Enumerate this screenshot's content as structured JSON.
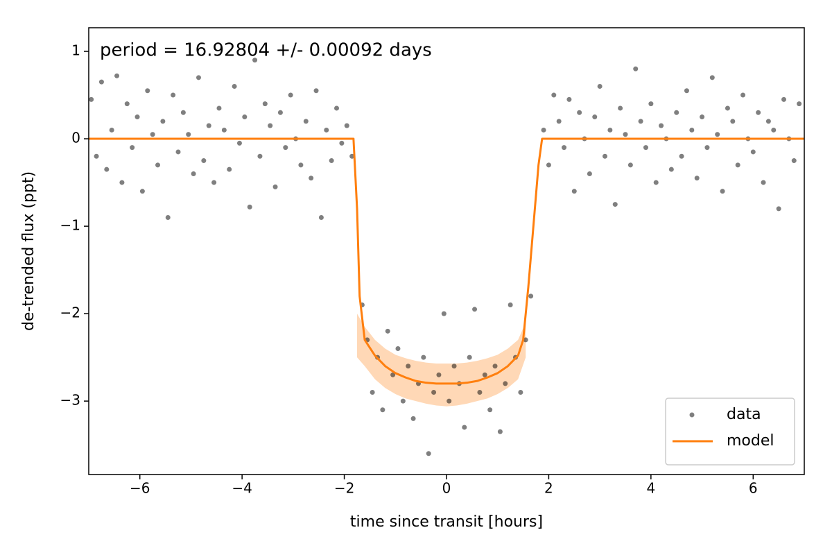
{
  "chart_data": {
    "type": "scatter",
    "title": "period = 16.92804 +/- 0.00092 days",
    "xlabel": "time since transit [hours]",
    "ylabel": "de-trended flux (ppt)",
    "xlim": [
      -7,
      7
    ],
    "ylim": [
      -3.84,
      1.27
    ],
    "xticks": [
      {
        "value": -6,
        "label": "−6"
      },
      {
        "value": -4,
        "label": "−4"
      },
      {
        "value": -2,
        "label": "−2"
      },
      0,
      2,
      4,
      6
    ],
    "yticks": [
      {
        "value": -3,
        "label": "−3"
      },
      {
        "value": -2,
        "label": "−2"
      },
      {
        "value": -1,
        "label": "−1"
      },
      0,
      1
    ],
    "legend": "lower right",
    "series": [
      {
        "name": "data",
        "type": "scatter",
        "color": "#000000",
        "x": [
          -6.95,
          -6.85,
          -6.75,
          -6.65,
          -6.55,
          -6.45,
          -6.35,
          -6.25,
          -6.15,
          -6.05,
          -5.95,
          -5.85,
          -5.75,
          -5.65,
          -5.55,
          -5.45,
          -5.35,
          -5.25,
          -5.15,
          -5.05,
          -4.95,
          -4.85,
          -4.75,
          -4.65,
          -4.55,
          -4.45,
          -4.35,
          -4.25,
          -4.15,
          -4.05,
          -3.95,
          -3.85,
          -3.75,
          -3.65,
          -3.55,
          -3.45,
          -3.35,
          -3.25,
          -3.15,
          -3.05,
          -2.95,
          -2.85,
          -2.75,
          -2.65,
          -2.55,
          -2.45,
          -2.35,
          -2.25,
          -2.15,
          -2.05,
          -1.95,
          -1.85,
          -1.65,
          -1.55,
          -1.45,
          -1.35,
          -1.25,
          -1.15,
          -1.05,
          -0.95,
          -0.85,
          -0.75,
          -0.65,
          -0.55,
          -0.45,
          -0.35,
          -0.25,
          -0.15,
          -0.05,
          0.05,
          0.15,
          0.25,
          0.35,
          0.45,
          0.55,
          0.65,
          0.75,
          0.85,
          0.95,
          1.05,
          1.15,
          1.25,
          1.35,
          1.45,
          1.55,
          1.65,
          1.9,
          2.0,
          2.1,
          2.2,
          2.3,
          2.4,
          2.5,
          2.6,
          2.7,
          2.8,
          2.9,
          3.0,
          3.1,
          3.2,
          3.3,
          3.4,
          3.5,
          3.6,
          3.7,
          3.8,
          3.9,
          4.0,
          4.1,
          4.2,
          4.3,
          4.4,
          4.5,
          4.6,
          4.7,
          4.8,
          4.9,
          5.0,
          5.1,
          5.2,
          5.3,
          5.4,
          5.5,
          5.6,
          5.7,
          5.8,
          5.9,
          6.0,
          6.1,
          6.2,
          6.3,
          6.4,
          6.5,
          6.6,
          6.7,
          6.8,
          6.9
        ],
        "values": [
          0.45,
          -0.2,
          0.65,
          -0.35,
          0.1,
          0.72,
          -0.5,
          0.4,
          -0.1,
          0.25,
          -0.6,
          0.55,
          0.05,
          -0.3,
          0.2,
          -0.9,
          0.5,
          -0.15,
          0.3,
          0.05,
          -0.4,
          0.7,
          -0.25,
          0.15,
          -0.5,
          0.35,
          0.1,
          -0.35,
          0.6,
          -0.05,
          0.25,
          -0.78,
          0.9,
          -0.2,
          0.4,
          0.15,
          -0.55,
          0.3,
          -0.1,
          0.5,
          0.0,
          -0.3,
          0.2,
          -0.45,
          0.55,
          -0.9,
          0.1,
          -0.25,
          0.35,
          -0.05,
          0.15,
          -0.2,
          -1.9,
          -2.3,
          -2.9,
          -2.5,
          -3.1,
          -2.2,
          -2.7,
          -2.4,
          -3.0,
          -2.6,
          -3.2,
          -2.8,
          -2.5,
          -3.6,
          -2.9,
          -2.7,
          -2.0,
          -3.0,
          -2.6,
          -2.8,
          -3.3,
          -2.5,
          -1.95,
          -2.9,
          -2.7,
          -3.1,
          -2.6,
          -3.35,
          -2.8,
          -1.9,
          -2.5,
          -2.9,
          -2.3,
          -1.8,
          0.1,
          -0.3,
          0.5,
          0.2,
          -0.1,
          0.45,
          -0.6,
          0.3,
          0.0,
          -0.4,
          0.25,
          0.6,
          -0.2,
          0.1,
          -0.75,
          0.35,
          0.05,
          -0.3,
          0.8,
          0.2,
          -0.1,
          0.4,
          -0.5,
          0.15,
          0.0,
          -0.35,
          0.3,
          -0.2,
          0.55,
          0.1,
          -0.45,
          0.25,
          -0.1,
          0.7,
          0.05,
          -0.6,
          0.35,
          0.2,
          -0.3,
          0.5,
          0.0,
          -0.15,
          0.3,
          -0.5,
          0.2,
          0.1,
          -0.8,
          0.45,
          0.0,
          -0.25,
          0.4
        ]
      },
      {
        "name": "model",
        "type": "line",
        "color": "#ff7f0e",
        "x": [
          -7,
          -1.82,
          -1.75,
          -1.7,
          -1.6,
          -1.4,
          -1.2,
          -1.0,
          -0.8,
          -0.6,
          -0.4,
          -0.2,
          0,
          0.2,
          0.4,
          0.6,
          0.8,
          1.0,
          1.2,
          1.4,
          1.5,
          1.6,
          1.7,
          1.8,
          1.87,
          7
        ],
        "values": [
          0,
          0,
          -0.8,
          -1.8,
          -2.3,
          -2.48,
          -2.6,
          -2.68,
          -2.73,
          -2.77,
          -2.79,
          -2.8,
          -2.8,
          -2.8,
          -2.79,
          -2.77,
          -2.73,
          -2.68,
          -2.6,
          -2.48,
          -2.3,
          -1.7,
          -1.0,
          -0.3,
          0,
          0
        ]
      }
    ],
    "band": {
      "color": "#ff7f0e",
      "x": [
        -1.75,
        -1.6,
        -1.4,
        -1.2,
        -1.0,
        -0.8,
        -0.6,
        -0.4,
        -0.2,
        0,
        0.2,
        0.4,
        0.6,
        0.8,
        1.0,
        1.2,
        1.4,
        1.55
      ],
      "upper": [
        -2.0,
        -2.15,
        -2.3,
        -2.4,
        -2.47,
        -2.51,
        -2.54,
        -2.56,
        -2.57,
        -2.57,
        -2.57,
        -2.56,
        -2.54,
        -2.51,
        -2.47,
        -2.4,
        -2.3,
        -2.1
      ],
      "lower": [
        -2.5,
        -2.6,
        -2.75,
        -2.85,
        -2.92,
        -2.97,
        -3.0,
        -3.03,
        -3.05,
        -3.06,
        -3.05,
        -3.03,
        -3.0,
        -2.97,
        -2.92,
        -2.85,
        -2.75,
        -2.5
      ]
    }
  }
}
